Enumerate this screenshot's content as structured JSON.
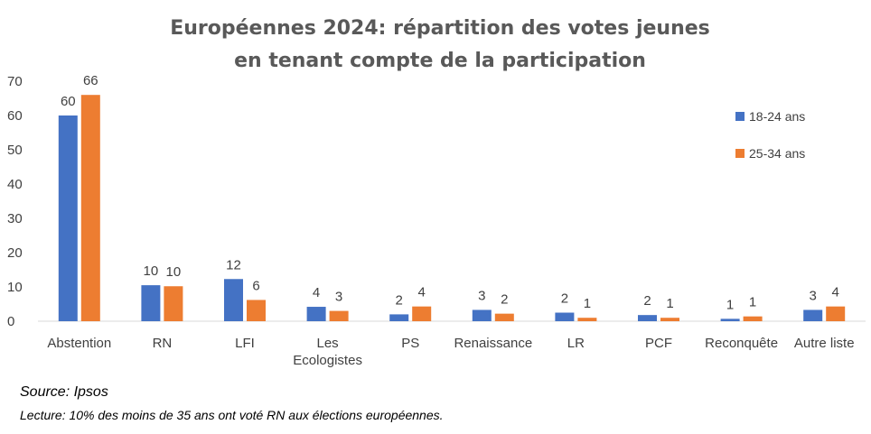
{
  "chart_data": {
    "type": "bar",
    "title_lines": [
      "Européennes 2024: répartition des votes jeunes",
      "en tenant compte de la participation"
    ],
    "categories": [
      "Abstention",
      "RN",
      "LFI",
      "Les Ecologistes",
      "PS",
      "Renaissance",
      "LR",
      "PCF",
      "Reconquête",
      "Autre liste"
    ],
    "category_lines": [
      [
        "Abstention"
      ],
      [
        "RN"
      ],
      [
        "LFI"
      ],
      [
        "Les",
        "Ecologistes"
      ],
      [
        "PS"
      ],
      [
        "Renaissance"
      ],
      [
        "LR"
      ],
      [
        "PCF"
      ],
      [
        "Reconquête"
      ],
      [
        "Autre liste"
      ]
    ],
    "series": [
      {
        "name": "18-24 ans",
        "color": "#4472C4",
        "values": [
          60,
          10.5,
          12.3,
          4.2,
          2,
          3.3,
          2.5,
          1.8,
          0.7,
          3.3
        ],
        "labels": [
          "60",
          "10",
          "12",
          "4",
          "2",
          "3",
          "2",
          "2",
          "1",
          "3"
        ]
      },
      {
        "name": "25-34 ans",
        "color": "#ED7D31",
        "values": [
          66,
          10.2,
          6.2,
          3,
          4.3,
          2.2,
          1,
          1,
          1.4,
          4.3
        ],
        "labels": [
          "66",
          "10",
          "6",
          "3",
          "4",
          "2",
          "1",
          "1",
          "1",
          "4"
        ]
      }
    ],
    "ylim": [
      0,
      70
    ],
    "yticks": [
      0,
      10,
      20,
      30,
      40,
      50,
      60,
      70
    ],
    "legend_position": "right",
    "grid": false
  },
  "notes": {
    "source": "Source: Ipsos",
    "lecture": "Lecture: 10% des moins de 35 ans ont voté RN aux élections européennes."
  }
}
